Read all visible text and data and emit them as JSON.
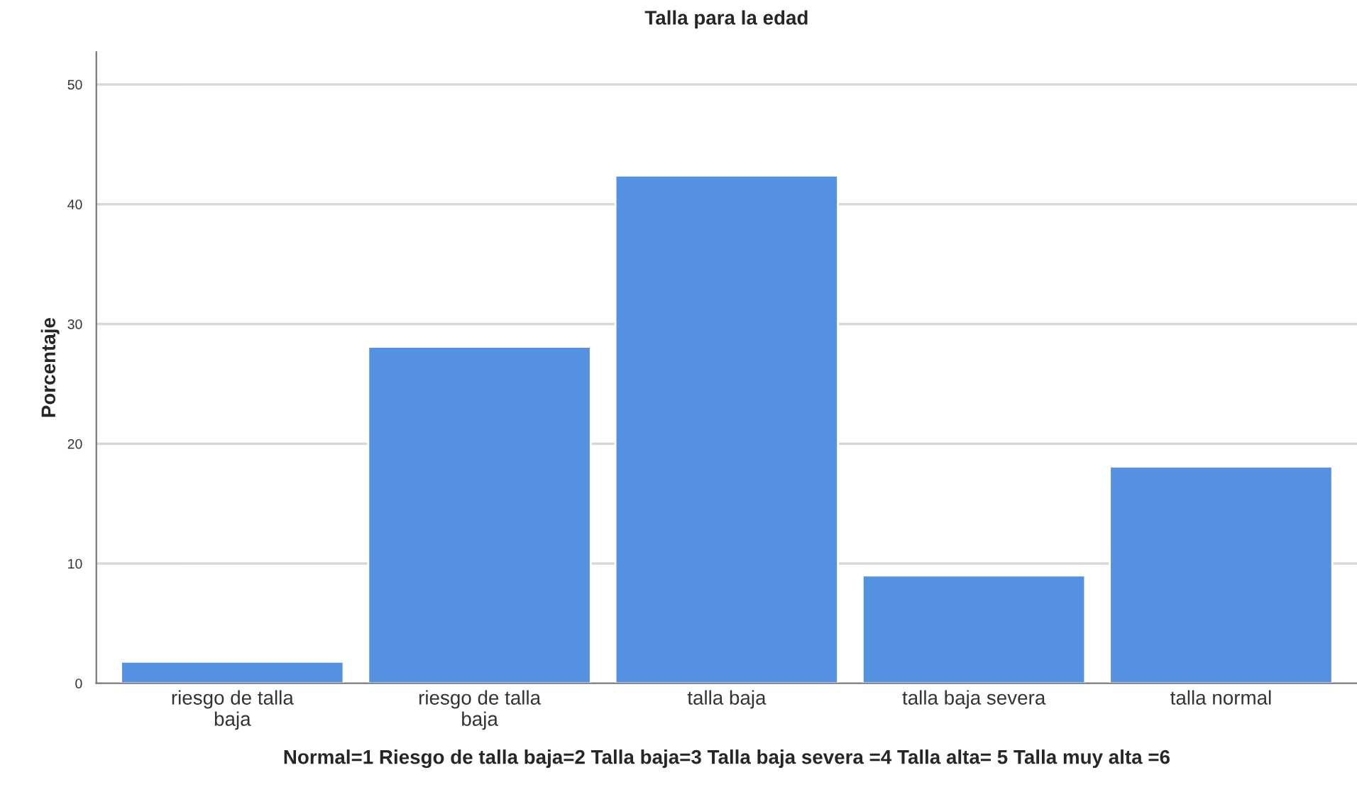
{
  "chart_data": {
    "type": "bar",
    "title": "Talla para la edad",
    "xlabel": "Normal=1 Riesgo de talla baja=2 Talla baja=3 Talla baja severa =4 Talla alta= 5 Talla muy alta =6",
    "ylabel": "Porcentaje",
    "categories": [
      "riesgo de talla\nbaja",
      "riesgo de talla\nbaja",
      "talla baja",
      "talla baja severa",
      "talla normal"
    ],
    "values": [
      1.8,
      28.1,
      42.4,
      9.0,
      18.1
    ],
    "color": "#5591e1",
    "ylim": [
      0,
      52.7
    ],
    "yticks": [
      0,
      10,
      20,
      30,
      40,
      50
    ],
    "grid": "y"
  }
}
